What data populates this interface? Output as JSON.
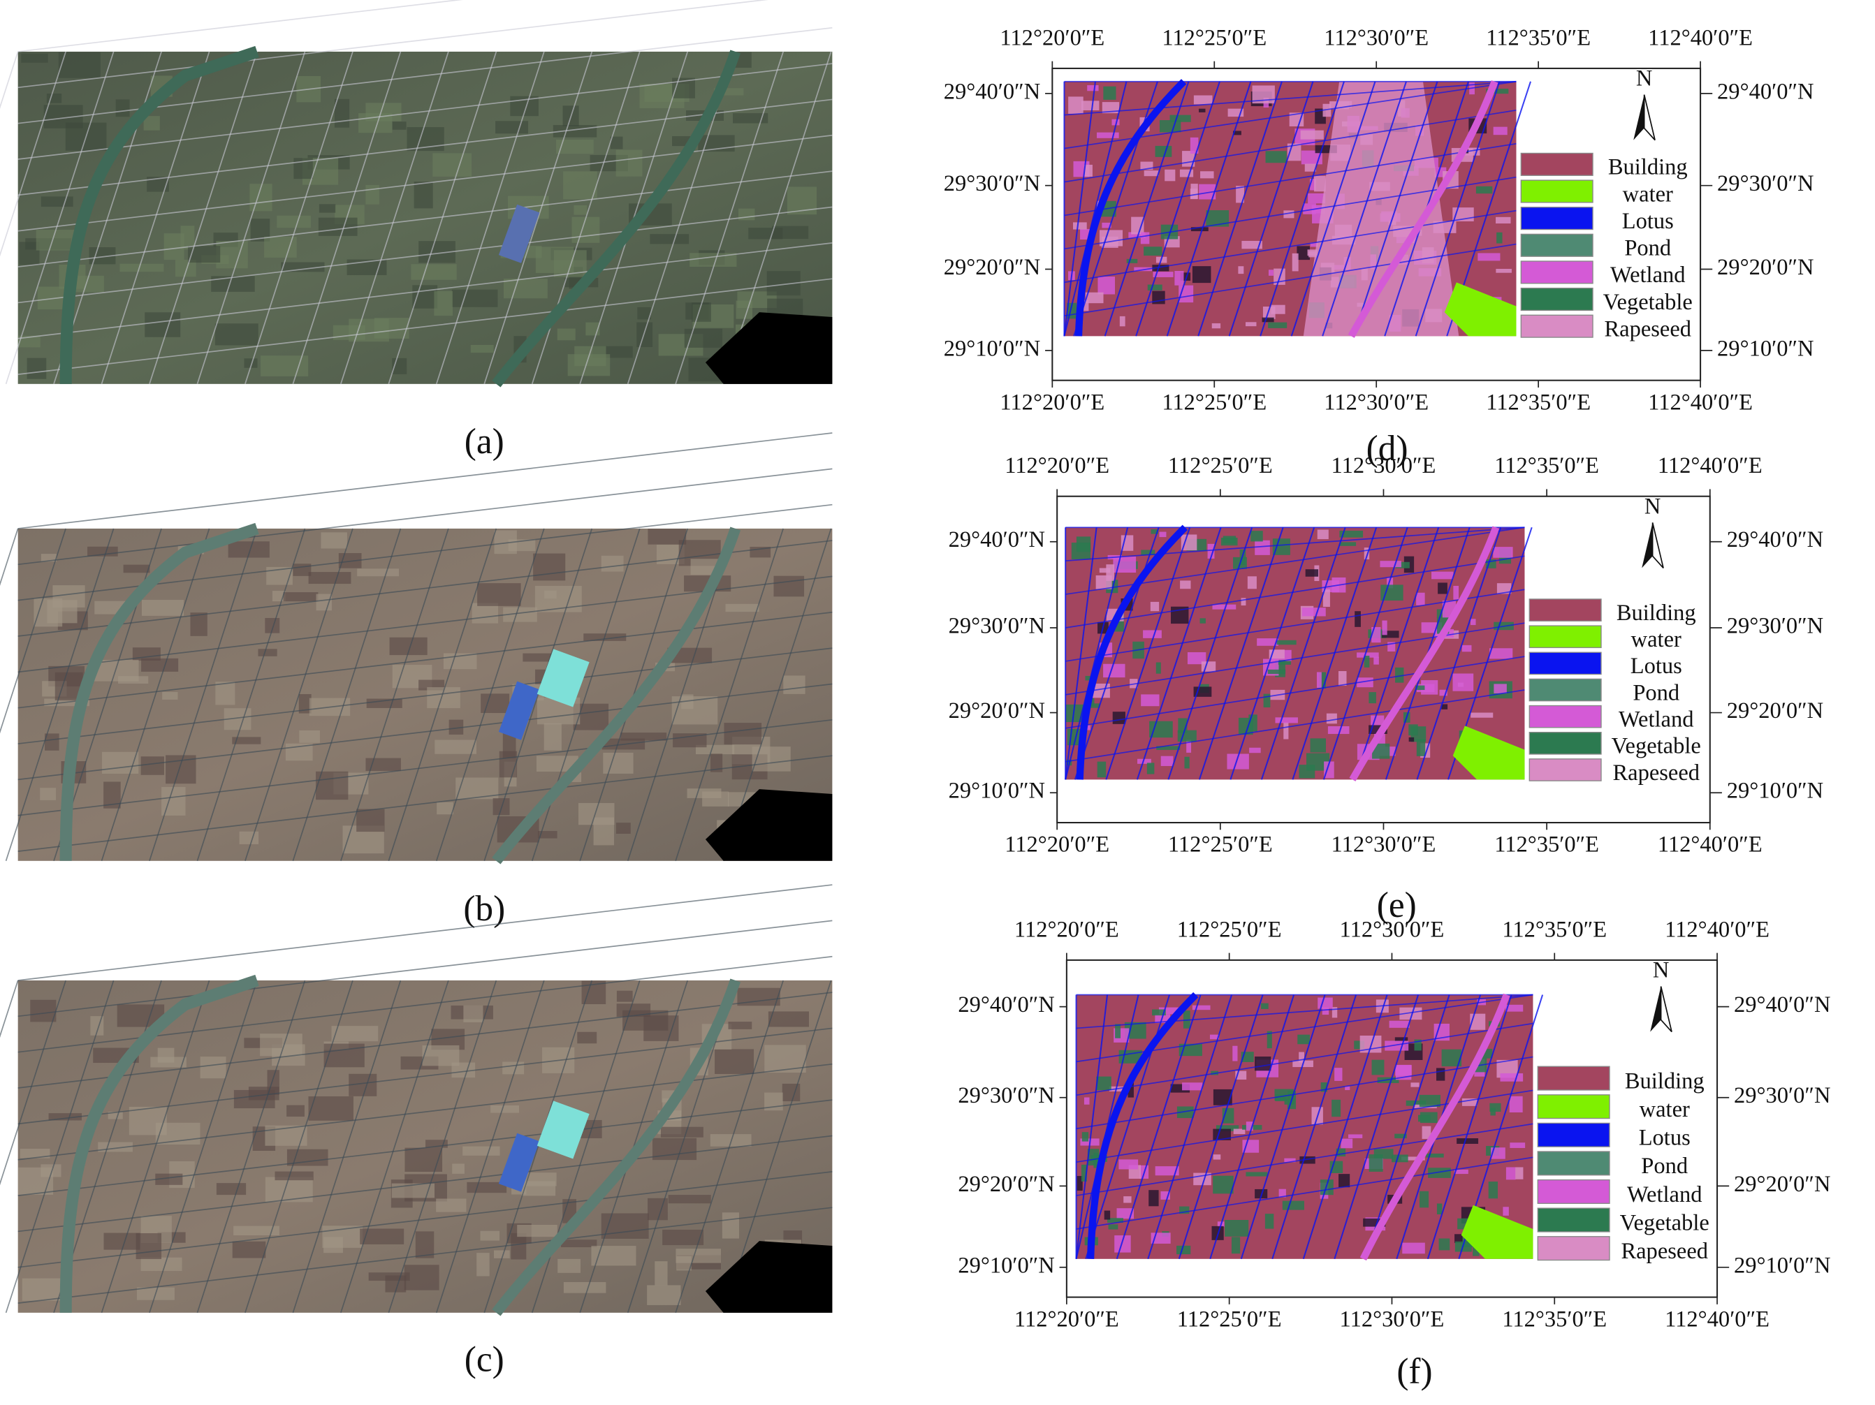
{
  "panels": [
    {
      "label": "(a)"
    },
    {
      "label": "(b)"
    },
    {
      "label": "(c)"
    }
  ],
  "maps": [
    {
      "label": "(d)"
    },
    {
      "label": "(e)"
    },
    {
      "label": "(f)"
    }
  ],
  "x_ticks": [
    "112°20′0″E",
    "112°25′0″E",
    "112°30′0″E",
    "112°35′0″E",
    "112°40′0″E"
  ],
  "y_ticks": [
    "29°40′0″N",
    "29°30′0″N",
    "29°20′0″N",
    "29°10′0″N"
  ],
  "north": "N",
  "legend": [
    {
      "name": "Building",
      "color": "#a3455f"
    },
    {
      "name": "water",
      "color": "#7ff000"
    },
    {
      "name": "Lotus",
      "color": "#0a14f0"
    },
    {
      "name": "Pond",
      "color": "#4f8a73"
    },
    {
      "name": "Wetland",
      "color": "#d45ad6"
    },
    {
      "name": "Vegetable",
      "color": "#2c7a50"
    },
    {
      "name": "Rapeseed",
      "color": "#d98cc4"
    }
  ]
}
